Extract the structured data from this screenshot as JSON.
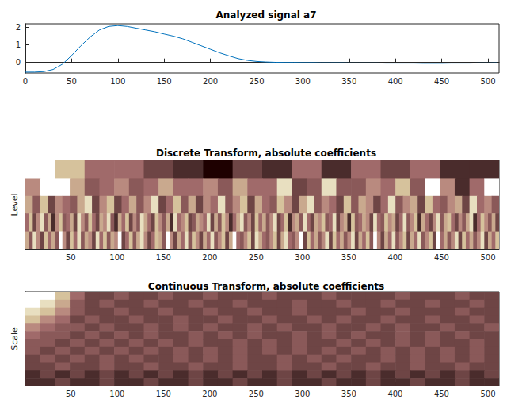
{
  "chart_data": [
    {
      "type": "line",
      "title": "Analyzed signal a7",
      "x": [
        0,
        10,
        20,
        30,
        40,
        50,
        60,
        70,
        80,
        90,
        100,
        110,
        120,
        130,
        140,
        150,
        160,
        170,
        180,
        190,
        200,
        210,
        220,
        230,
        240,
        250,
        260,
        270,
        280,
        290,
        300,
        310,
        320,
        330,
        340,
        350,
        360,
        370,
        380,
        390,
        400,
        410,
        420,
        430,
        440,
        450,
        460,
        470,
        480,
        490,
        500,
        510
      ],
      "values": [
        -0.55,
        -0.55,
        -0.52,
        -0.4,
        -0.1,
        0.4,
        0.95,
        1.45,
        1.85,
        2.05,
        2.1,
        2.05,
        1.95,
        1.85,
        1.75,
        1.62,
        1.5,
        1.35,
        1.15,
        0.95,
        0.75,
        0.55,
        0.38,
        0.22,
        0.12,
        0.06,
        0.03,
        0.01,
        0,
        0,
        -0.01,
        -0.01,
        -0.02,
        -0.02,
        -0.02,
        -0.03,
        -0.03,
        -0.03,
        -0.03,
        -0.04,
        -0.04,
        -0.04,
        -0.04,
        -0.05,
        -0.05,
        -0.05,
        -0.04,
        -0.04,
        -0.04,
        -0.03,
        -0.03,
        -0.02
      ],
      "color": "#0072bd",
      "xlim": [
        0,
        512
      ],
      "ylim": [
        -0.6,
        2.2
      ],
      "xticks": [
        0,
        50,
        100,
        150,
        200,
        250,
        300,
        350,
        400,
        450,
        500
      ],
      "yticks": [
        0,
        1,
        2
      ],
      "grid": false
    },
    {
      "type": "heatmap",
      "title": "Discrete Transform, absolute coefficients",
      "ylabel": "Level",
      "xlim": [
        1,
        512
      ],
      "xticks": [
        50,
        100,
        150,
        200,
        250,
        300,
        350,
        400,
        450,
        500
      ],
      "tick_labels": "x",
      "clim": [
        0,
        9
      ],
      "cells": [
        [
          9,
          7,
          4,
          4,
          2,
          1,
          0,
          2,
          1,
          4,
          1,
          4,
          2,
          4,
          1,
          1
        ],
        [
          5,
          9,
          9,
          6,
          3,
          4,
          5,
          3,
          4,
          6,
          4,
          4,
          5,
          3,
          6,
          4,
          4,
          8,
          2,
          3,
          8,
          3,
          3,
          5,
          4,
          7,
          3,
          9,
          5,
          1,
          4,
          9
        ],
        [
          6,
          3,
          7,
          2,
          5,
          4,
          3,
          6,
          8,
          2,
          5,
          7,
          2,
          4,
          6,
          3,
          5,
          8,
          2,
          4,
          7,
          3,
          6,
          2,
          5,
          4,
          8,
          3,
          5,
          7,
          2,
          6,
          4,
          3,
          7,
          5,
          2,
          6,
          8,
          3,
          5,
          4,
          2,
          7,
          3,
          6,
          5,
          2,
          4,
          8,
          3,
          5,
          6,
          2,
          7,
          4,
          3,
          5,
          6,
          2,
          8,
          4,
          5,
          3
        ],
        [
          4,
          7,
          2,
          5,
          8,
          3,
          6,
          1,
          5,
          7,
          3,
          4,
          6,
          2,
          8,
          5,
          3,
          7,
          4,
          2,
          6,
          5,
          8,
          3,
          1,
          6,
          4,
          7,
          2,
          5,
          3,
          8,
          6,
          4,
          2,
          7,
          5,
          3,
          6,
          1,
          8,
          4,
          5,
          7,
          2,
          3,
          6,
          5,
          4,
          8,
          2,
          6,
          3,
          7,
          5,
          1,
          4,
          6,
          8,
          3,
          5,
          2,
          7,
          4,
          6,
          3,
          5,
          8,
          2,
          4,
          7,
          1,
          5,
          6,
          3,
          8,
          4,
          2,
          6,
          5,
          7,
          3,
          4,
          8,
          2,
          5,
          6,
          1,
          7,
          3,
          4,
          6,
          5,
          2,
          8,
          4,
          3,
          7,
          5,
          6,
          2,
          4,
          8,
          3,
          5,
          7,
          1,
          6,
          4,
          2,
          5,
          8,
          3,
          6,
          7,
          4,
          2,
          5,
          3,
          6,
          8,
          1,
          4,
          7,
          5,
          3,
          6,
          2
        ],
        [
          6,
          3,
          8,
          5,
          2,
          7,
          4,
          6,
          3,
          9,
          5,
          2,
          7,
          4,
          8,
          3,
          6,
          5,
          2,
          8,
          4,
          7,
          3,
          6,
          5,
          9,
          2,
          4,
          7,
          3,
          6,
          8,
          5,
          2,
          4,
          7,
          6,
          3,
          9,
          5,
          2,
          6,
          4,
          8,
          3,
          7,
          5,
          2,
          6,
          4,
          8,
          3,
          5,
          7,
          2,
          6,
          9,
          4,
          3,
          5,
          7,
          2,
          8,
          6,
          4,
          3,
          5,
          7,
          2,
          6,
          8,
          4,
          3,
          5,
          9,
          2,
          7,
          4,
          6,
          3,
          5,
          8,
          2,
          7,
          4,
          6,
          3,
          5,
          8,
          2,
          6,
          4,
          7,
          3,
          9,
          5,
          2,
          6,
          4,
          8,
          3,
          5,
          7,
          2,
          6,
          4,
          8,
          3,
          5,
          7,
          2,
          9,
          4,
          6,
          3,
          5,
          8,
          2,
          7,
          4,
          6,
          3,
          5,
          8,
          2,
          6,
          4,
          7
        ]
      ]
    },
    {
      "type": "heatmap",
      "title": "Continuous Transform, absolute coefficients",
      "ylabel": "Scale",
      "xlim": [
        1,
        512
      ],
      "xticks": [
        50,
        100,
        150,
        200,
        250,
        300,
        350,
        400,
        450,
        500
      ],
      "tick_labels": "x",
      "clim": [
        0,
        9
      ],
      "cells": [
        [
          9,
          9,
          7,
          4,
          2,
          2,
          3,
          2,
          2,
          3,
          2,
          2,
          3,
          2,
          2,
          2,
          3,
          2,
          2,
          2,
          3,
          2,
          2,
          2,
          2,
          3,
          2,
          2,
          2,
          3,
          2,
          2
        ],
        [
          9,
          8,
          6,
          3,
          2,
          3,
          2,
          2,
          3,
          2,
          2,
          3,
          2,
          2,
          3,
          2,
          2,
          2,
          3,
          2,
          2,
          3,
          2,
          2,
          3,
          2,
          2,
          3,
          2,
          2,
          3,
          2
        ],
        [
          8,
          7,
          5,
          3,
          2,
          2,
          3,
          2,
          2,
          3,
          2,
          2,
          3,
          2,
          2,
          3,
          2,
          2,
          3,
          2,
          2,
          2,
          3,
          2,
          2,
          3,
          2,
          2,
          2,
          3,
          2,
          2
        ],
        [
          7,
          5,
          4,
          2,
          3,
          2,
          2,
          3,
          2,
          2,
          3,
          2,
          2,
          3,
          2,
          2,
          3,
          2,
          2,
          3,
          2,
          3,
          2,
          2,
          3,
          2,
          2,
          3,
          2,
          2,
          3,
          2
        ],
        [
          5,
          4,
          3,
          3,
          2,
          3,
          2,
          2,
          3,
          2,
          3,
          2,
          3,
          2,
          2,
          3,
          2,
          3,
          2,
          2,
          3,
          2,
          2,
          3,
          2,
          3,
          2,
          2,
          3,
          2,
          2,
          3
        ],
        [
          4,
          3,
          3,
          2,
          3,
          2,
          3,
          2,
          3,
          2,
          2,
          3,
          2,
          3,
          2,
          3,
          2,
          2,
          3,
          2,
          3,
          2,
          3,
          2,
          2,
          3,
          2,
          3,
          2,
          3,
          2,
          2
        ],
        [
          3,
          3,
          2,
          3,
          2,
          3,
          2,
          3,
          2,
          3,
          2,
          3,
          2,
          2,
          3,
          2,
          3,
          2,
          3,
          2,
          2,
          3,
          2,
          3,
          2,
          3,
          2,
          3,
          2,
          2,
          3,
          2
        ],
        [
          3,
          2,
          3,
          2,
          3,
          2,
          3,
          2,
          3,
          2,
          3,
          2,
          3,
          2,
          3,
          2,
          3,
          2,
          3,
          2,
          3,
          2,
          3,
          2,
          3,
          2,
          3,
          2,
          3,
          2,
          3,
          2
        ],
        [
          2,
          3,
          2,
          3,
          2,
          3,
          2,
          3,
          2,
          2,
          3,
          2,
          3,
          2,
          3,
          2,
          2,
          3,
          2,
          3,
          2,
          3,
          2,
          2,
          3,
          2,
          3,
          2,
          3,
          2,
          3,
          2
        ],
        [
          2,
          2,
          3,
          2,
          2,
          3,
          2,
          2,
          3,
          2,
          2,
          3,
          2,
          2,
          3,
          2,
          2,
          3,
          2,
          2,
          3,
          2,
          2,
          3,
          2,
          2,
          3,
          2,
          2,
          3,
          2,
          2
        ],
        [
          1,
          2,
          1,
          2,
          1,
          2,
          1,
          2,
          1,
          2,
          1,
          2,
          1,
          2,
          1,
          2,
          1,
          2,
          1,
          2,
          1,
          2,
          1,
          2,
          1,
          2,
          1,
          2,
          1,
          2,
          1,
          2
        ],
        [
          1,
          1,
          2,
          1,
          1,
          2,
          1,
          1,
          2,
          1,
          1,
          2,
          1,
          1,
          2,
          1,
          1,
          2,
          1,
          1,
          2,
          1,
          1,
          2,
          1,
          1,
          2,
          1,
          1,
          2,
          1,
          1
        ]
      ]
    }
  ]
}
